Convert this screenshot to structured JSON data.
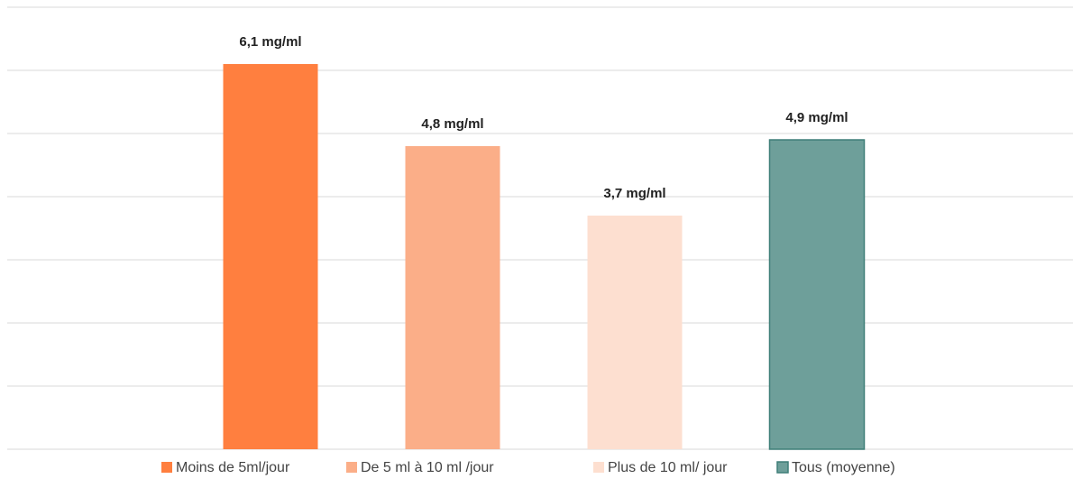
{
  "chart_data": {
    "type": "bar",
    "series": [
      {
        "name": "Moins de 5ml/jour",
        "color": "#FF7F3F",
        "values": [
          6.1
        ],
        "value_labels": [
          "6,1 mg/ml"
        ]
      },
      {
        "name": "De 5 ml à 10 ml /jour",
        "color": "#FBAE88",
        "values": [
          4.8
        ],
        "value_labels": [
          "4,8 mg/ml"
        ]
      },
      {
        "name": "Plus de 10 ml/ jour",
        "color": "#FDDFD0",
        "values": [
          3.7
        ],
        "value_labels": [
          "3,7 mg/ml"
        ]
      },
      {
        "name": "Tous (moyenne)",
        "color": "#6E9F9A",
        "edgecolor": "#3F7F78",
        "values": [
          4.9
        ],
        "value_labels": [
          "4,9 mg/ml"
        ]
      }
    ],
    "ylim": [
      0,
      7
    ],
    "yticks": [
      0,
      1,
      2,
      3,
      4,
      5,
      6,
      7
    ],
    "grid": true,
    "legend": "bottom"
  }
}
